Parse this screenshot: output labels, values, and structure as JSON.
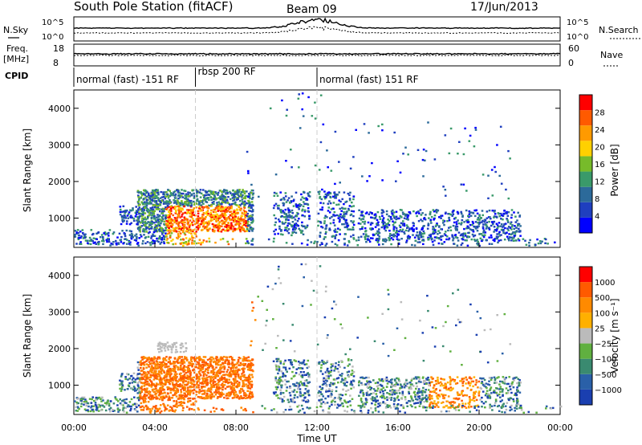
{
  "header": {
    "station_title": "South Pole Station (fitACF)",
    "beam": "Beam 09",
    "date": "17/Jun/2013"
  },
  "strip_labels": {
    "nsky": "N.Sky",
    "nsearch": "N.Search",
    "freq": "Freq.",
    "freq_unit": "[MHz]",
    "nave": "Nave",
    "cpid": "CPID",
    "left_top": "10^5",
    "left_bottom": "10^0",
    "right_top": "10^5",
    "right_bottom": "10^0",
    "freq_top": "18",
    "freq_bottom": "8",
    "nave_top": "60",
    "nave_bottom": "0"
  },
  "cpid_modes": [
    {
      "label": "normal (fast) -151 RF",
      "start_h": 0,
      "end_h": 6
    },
    {
      "label": "rbsp 200 RF",
      "start_h": 6,
      "end_h": 12
    },
    {
      "label": "normal (fast) 151 RF",
      "start_h": 12,
      "end_h": 24
    }
  ],
  "chart_data": [
    {
      "type": "heatmap",
      "name": "power",
      "xlabel": "",
      "ylabel": "Slant Range [km]",
      "xlim": [
        0,
        24
      ],
      "ylim": [
        200,
        4500
      ],
      "yticks": [
        "1000",
        "2000",
        "3000",
        "4000"
      ],
      "colorbar_label": "Power [dB]",
      "colorbar_ticks": [
        "28",
        "24",
        "20",
        "16",
        "12",
        "8",
        "4"
      ],
      "colors": [
        "#0000ff",
        "#1f3fbf",
        "#2c6a9a",
        "#3a9a6a",
        "#77bb2a",
        "#ffd000",
        "#ff9a00",
        "#ff5a00",
        "#ff0000"
      ]
    },
    {
      "type": "heatmap",
      "name": "velocity",
      "xlabel": "Time UT",
      "ylabel": "Slant Range [km]",
      "xlim": [
        0,
        24
      ],
      "ylim": [
        200,
        4500
      ],
      "xticks": [
        "00:00",
        "04:00",
        "08:00",
        "12:00",
        "16:00",
        "20:00",
        "00:00"
      ],
      "yticks": [
        "1000",
        "2000",
        "3000",
        "4000"
      ],
      "colorbar_label": "Velocity [m s⁻¹]",
      "colorbar_ticks": [
        "1000",
        "500",
        "100",
        "25",
        "−25",
        "−100",
        "−500",
        "−1000"
      ],
      "colors": [
        "#1a3fb0",
        "#2a60a8",
        "#3a8a70",
        "#60b040",
        "#bbbbbb",
        "#ffb000",
        "#ff8a00",
        "#ff5a00",
        "#ff0000"
      ]
    }
  ]
}
